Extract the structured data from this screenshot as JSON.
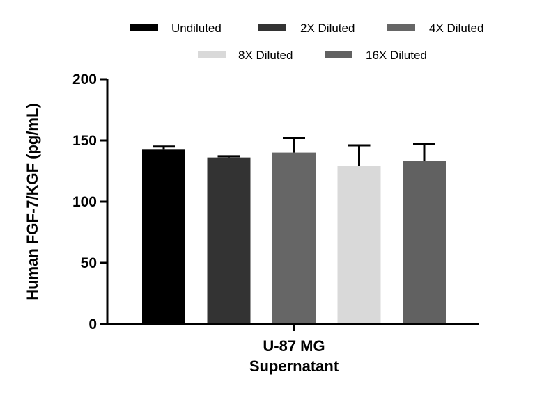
{
  "chart_data": {
    "type": "bar",
    "ylabel": "Human FGF-7/KGF (pg/mL)",
    "xlabel_lines": [
      "U-87 MG",
      "Supernatant"
    ],
    "ylim": [
      0,
      200
    ],
    "yticks": [
      0,
      50,
      100,
      150,
      200
    ],
    "ytick_labels": [
      "0",
      "50",
      "100",
      "150",
      "200"
    ],
    "grid": false,
    "legend_position": "top",
    "series": [
      {
        "name": "Undiluted",
        "value": 143,
        "error": 2,
        "color": "#000000"
      },
      {
        "name": "2X Diluted",
        "value": 136,
        "error": 1,
        "color": "#333333"
      },
      {
        "name": "4X Diluted",
        "value": 140,
        "error": 12,
        "color": "#666666"
      },
      {
        "name": "8X Diluted",
        "value": 129,
        "error": 17,
        "color": "#d9d9d9"
      },
      {
        "name": "16X Diluted",
        "value": 133,
        "error": 14,
        "color": "#616161"
      }
    ]
  }
}
